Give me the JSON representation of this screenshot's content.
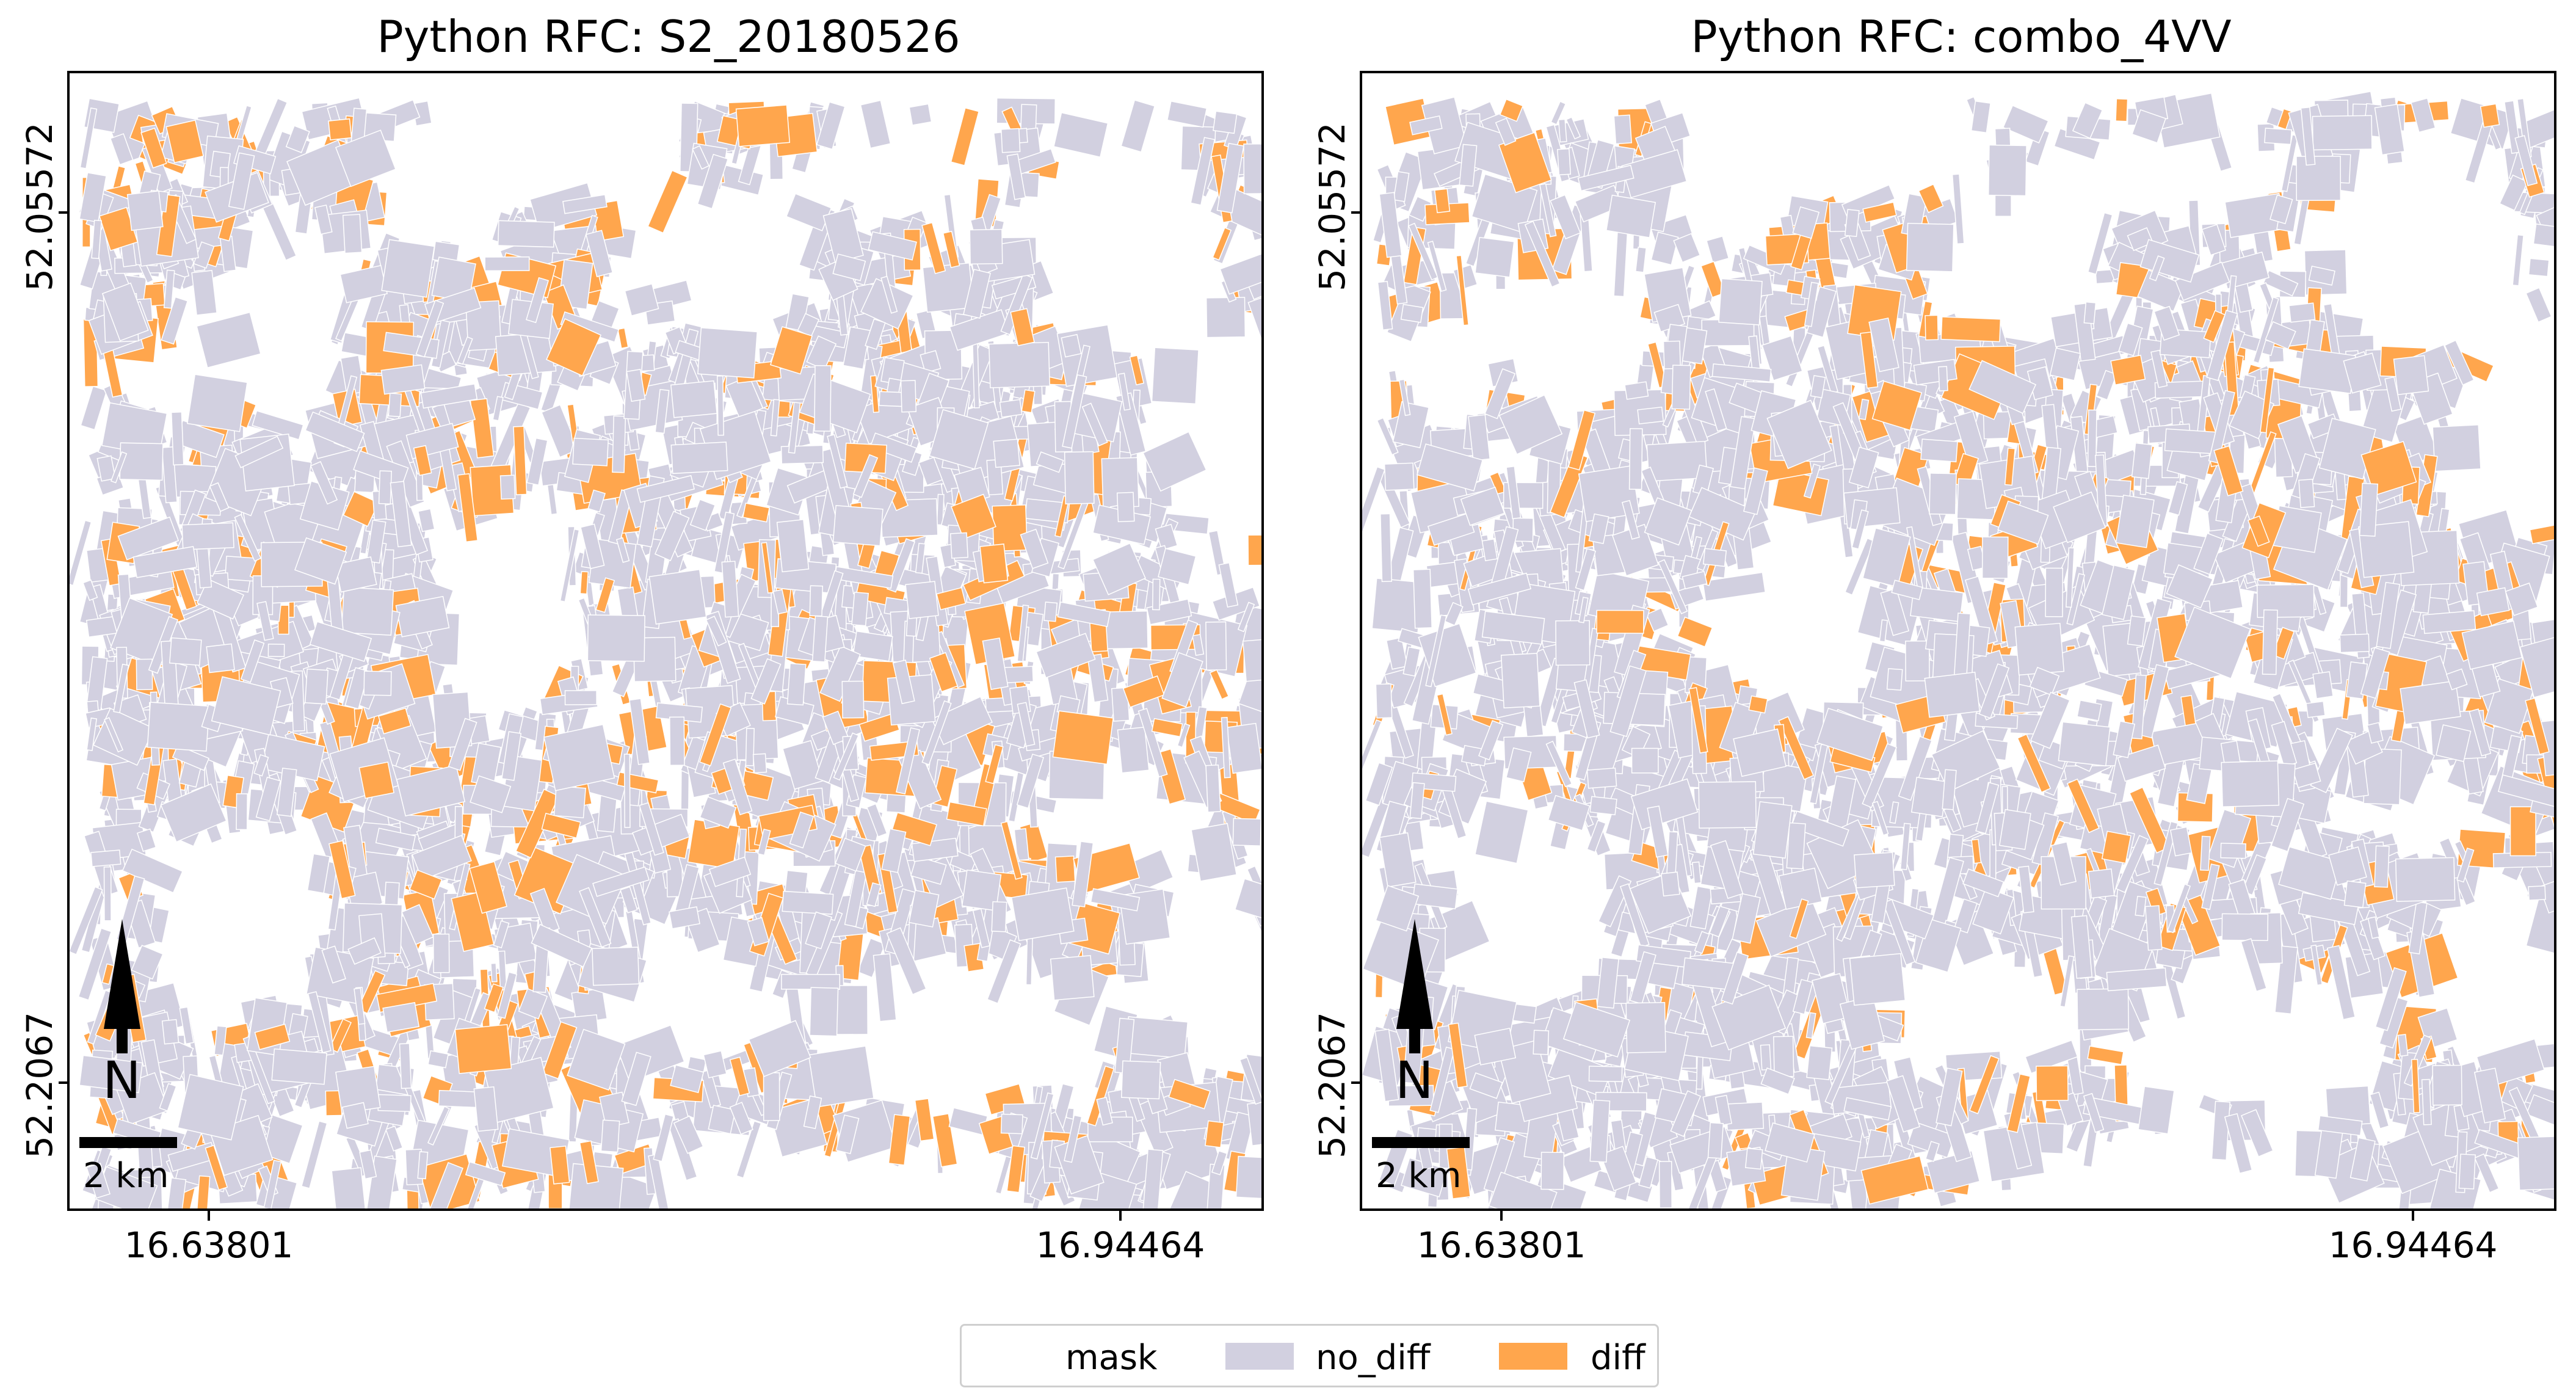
{
  "panels": [
    {
      "title": "Python RFC: S2_20180526",
      "x_ticks": [
        "16.63801",
        "16.94464"
      ],
      "y_ticks": [
        "52.05572",
        "52.2067"
      ]
    },
    {
      "title": "Python RFC: combo_4VV",
      "x_ticks": [
        "16.63801",
        "16.94464"
      ],
      "y_ticks": [
        "52.05572",
        "52.2067"
      ]
    }
  ],
  "scale_bar": {
    "label": "2 km"
  },
  "north_arrow": {
    "label": "N"
  },
  "legend": {
    "title": "mask",
    "items": [
      {
        "label": "no_diff",
        "color": "#d2d0e0"
      },
      {
        "label": "diff",
        "color": "#ffa64d"
      }
    ]
  }
}
